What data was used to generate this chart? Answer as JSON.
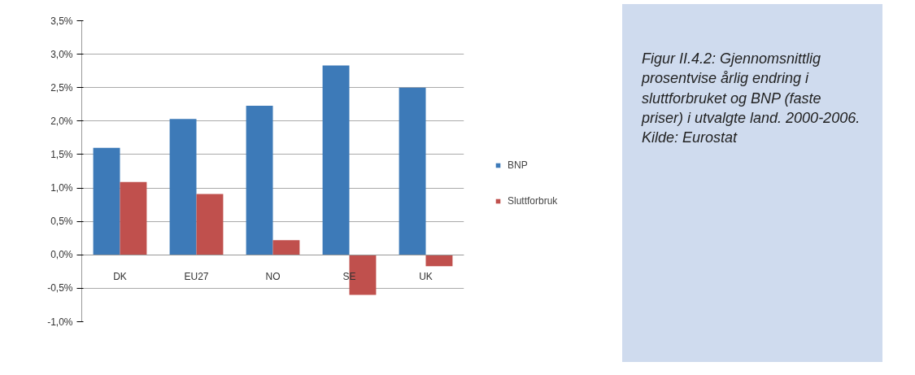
{
  "chart_data": {
    "type": "bar",
    "title": "Figur II.4.2: Gjennomsnittlig prosentvise årlig endring i sluttforbruket og BNP (faste priser) i utvalgte land. 2000-2006.",
    "annotations": [
      "Kilde: Eurostat"
    ],
    "categories": [
      "DK",
      "EU27",
      "NO",
      "SE",
      "UK"
    ],
    "series": [
      {
        "name": "BNP",
        "color": "#3d7ab8",
        "values": [
          1.6,
          2.03,
          2.23,
          2.83,
          2.5
        ]
      },
      {
        "name": "Sluttforbruk",
        "color": "#c0504d",
        "values": [
          1.09,
          0.91,
          0.22,
          -0.6,
          -0.17
        ]
      }
    ],
    "ylim": [
      -1.0,
      3.5
    ],
    "yticks": [
      {
        "value": -1.0,
        "label": "-1,0%"
      },
      {
        "value": -0.5,
        "label": "-0,5%"
      },
      {
        "value": 0,
        "label": "0,0%"
      },
      {
        "value": 0.5,
        "label": "0,5%"
      },
      {
        "value": 1.0,
        "label": "1,0%"
      },
      {
        "value": 1.5,
        "label": "1,5%"
      },
      {
        "value": 2.0,
        "label": "2,0%"
      },
      {
        "value": 2.5,
        "label": "2,5%"
      },
      {
        "value": 3.0,
        "label": "3,0%"
      },
      {
        "value": 3.5,
        "label": "3,5%"
      }
    ],
    "grid": "y",
    "legend": "right"
  }
}
